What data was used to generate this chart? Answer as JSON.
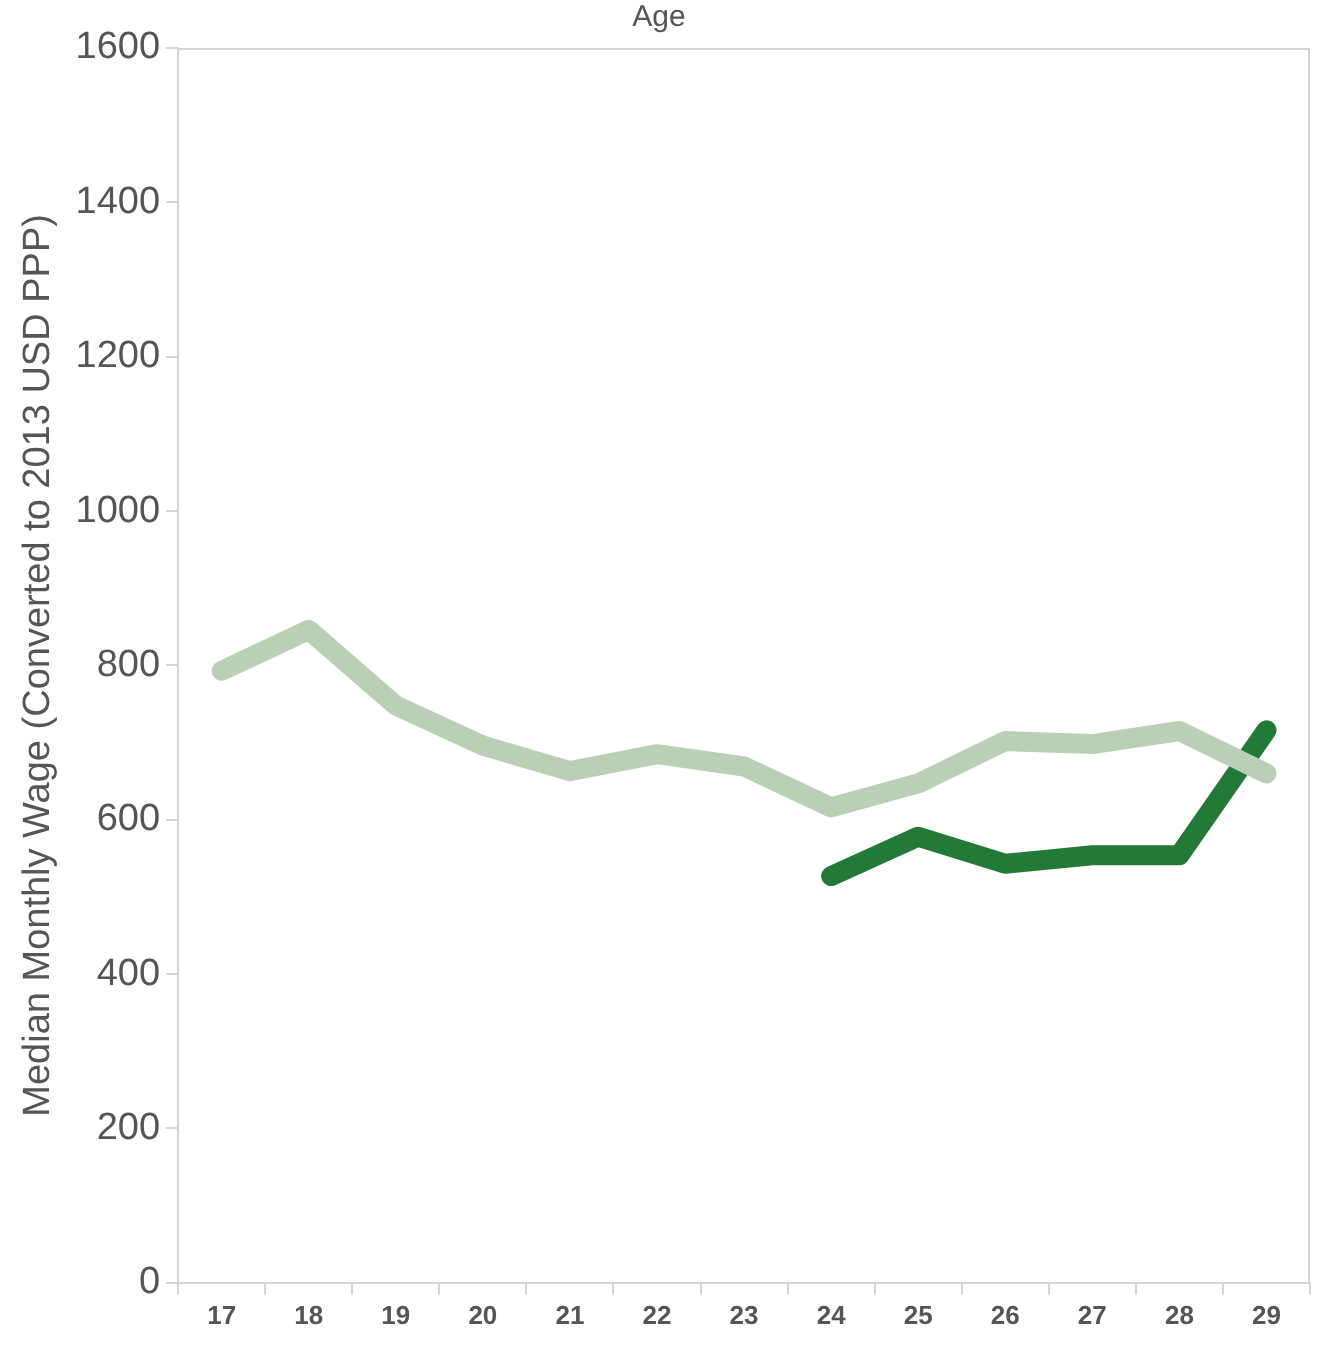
{
  "chart_data": {
    "type": "line",
    "xlabel": "Age",
    "ylabel": "Median Monthly Wage (Converted to 2013 USD PPP)",
    "categories": [
      "17",
      "18",
      "19",
      "20",
      "21",
      "22",
      "23",
      "24",
      "25",
      "26",
      "27",
      "28",
      "29"
    ],
    "series": [
      {
        "color": "#b9d0b4",
        "values": [
          793,
          846,
          748,
          696,
          663,
          685,
          669,
          616,
          647,
          702,
          698,
          715,
          660
        ]
      },
      {
        "color": "#217a35",
        "values": [
          null,
          null,
          null,
          null,
          null,
          null,
          null,
          527,
          578,
          543,
          554,
          554,
          716
        ]
      }
    ],
    "ylim": [
      0,
      1600
    ],
    "yticks": [
      0,
      200,
      400,
      600,
      800,
      1000,
      1200,
      1400,
      1600
    ],
    "grid": false,
    "legend": false,
    "marker": "none",
    "line_style": "solid"
  }
}
